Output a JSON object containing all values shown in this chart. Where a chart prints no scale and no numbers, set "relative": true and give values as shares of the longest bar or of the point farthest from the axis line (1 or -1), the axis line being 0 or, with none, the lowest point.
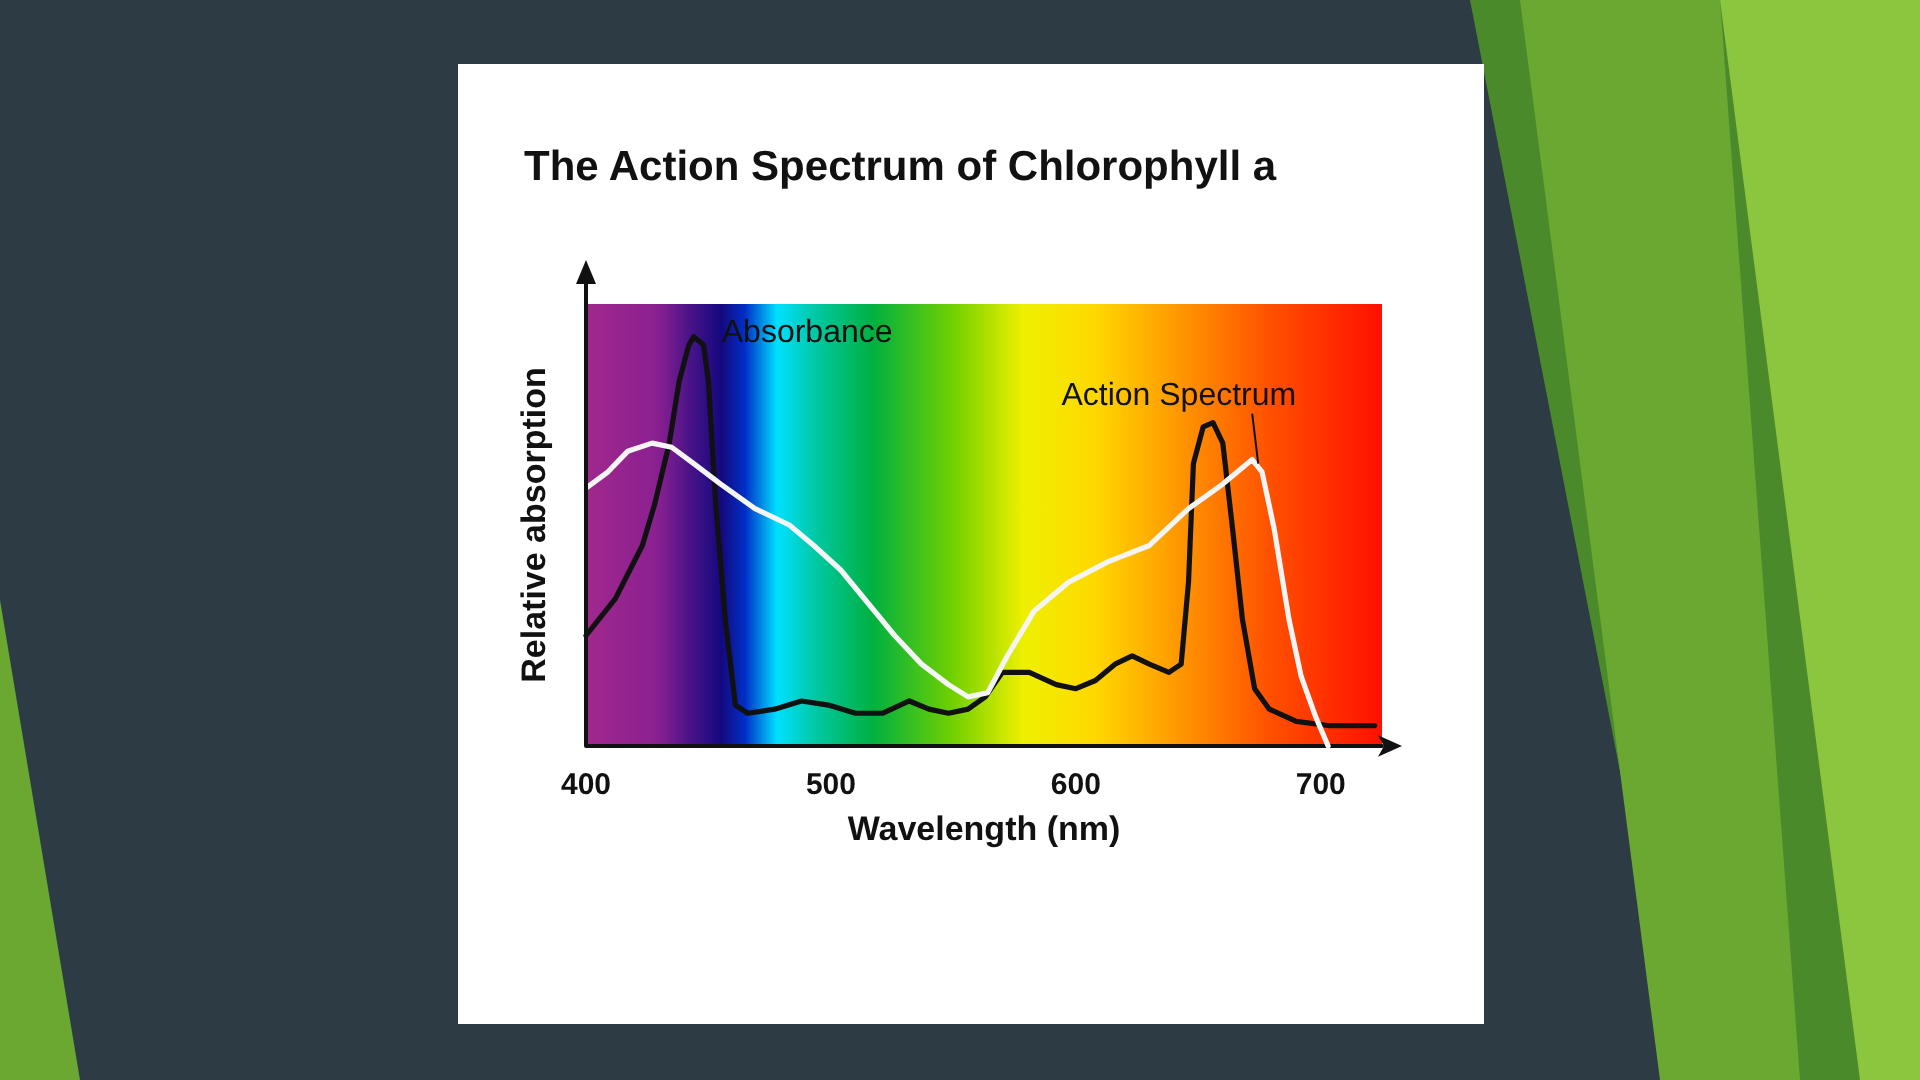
{
  "chart_data": {
    "type": "line",
    "title": "The Action Spectrum of Chlorophyll a",
    "xlabel": "Wavelength (nm)",
    "ylabel": "Relative absorption",
    "relative": true,
    "xlim": [
      400,
      725
    ],
    "xticks": [
      400,
      500,
      600,
      700
    ],
    "grid": false,
    "legend": false,
    "marker": "none",
    "line_style": "solid",
    "series": [
      {
        "name": "Absorbance",
        "color": "#111111",
        "x": [
          400,
          412,
          423,
          428,
          434,
          438,
          442,
          444,
          448,
          450,
          453,
          457,
          461,
          466,
          477,
          488,
          499,
          510,
          521,
          532,
          540,
          548,
          556,
          563,
          570,
          581,
          592,
          600,
          608,
          616,
          623,
          630,
          638,
          643,
          646,
          648,
          652,
          656,
          660,
          664,
          668,
          673,
          679,
          690,
          703,
          722
        ],
        "values": [
          0.27,
          0.36,
          0.49,
          0.59,
          0.74,
          0.89,
          0.98,
          1,
          0.98,
          0.89,
          0.59,
          0.3,
          0.1,
          0.08,
          0.09,
          0.11,
          0.1,
          0.08,
          0.08,
          0.11,
          0.09,
          0.08,
          0.09,
          0.12,
          0.18,
          0.18,
          0.15,
          0.14,
          0.16,
          0.2,
          0.22,
          0.2,
          0.18,
          0.2,
          0.4,
          0.69,
          0.78,
          0.79,
          0.74,
          0.53,
          0.31,
          0.14,
          0.09,
          0.06,
          0.05,
          0.05
        ]
      },
      {
        "name": "Action Spectrum",
        "color": "#f5f5f5",
        "x": [
          400,
          409,
          417,
          427,
          435,
          444,
          455,
          469,
          483,
          493,
          504,
          515,
          526,
          537,
          548,
          556,
          564,
          572,
          583,
          597,
          613,
          630,
          646,
          660,
          672,
          676,
          681,
          687,
          692,
          698,
          703
        ],
        "values": [
          0.63,
          0.67,
          0.72,
          0.74,
          0.73,
          0.69,
          0.64,
          0.58,
          0.54,
          0.49,
          0.43,
          0.35,
          0.27,
          0.2,
          0.15,
          0.12,
          0.13,
          0.22,
          0.33,
          0.4,
          0.45,
          0.49,
          0.58,
          0.64,
          0.7,
          0.67,
          0.53,
          0.31,
          0.17,
          0.07,
          0.0
        ]
      }
    ]
  }
}
